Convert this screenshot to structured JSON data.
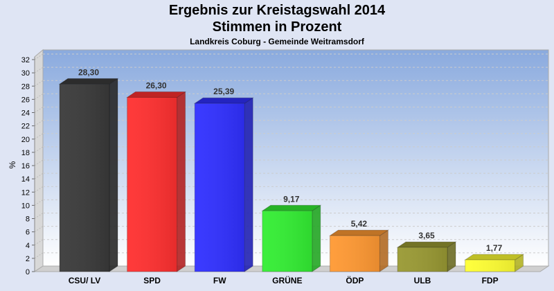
{
  "chart_data": {
    "type": "bar",
    "title": "Ergebnis zur Kreistagswahl 2014",
    "title2": "Stimmen in Prozent",
    "subtitle": "Landkreis Coburg - Gemeinde Weitramsdorf",
    "xlabel": "",
    "ylabel": "%",
    "ylim": [
      0,
      32
    ],
    "yticks": [
      0,
      2,
      4,
      6,
      8,
      10,
      12,
      14,
      16,
      18,
      20,
      22,
      24,
      26,
      28,
      30,
      32
    ],
    "categories": [
      "CSU/ LV",
      "SPD",
      "FW",
      "GRÜNE",
      "ÖDP",
      "ULB",
      "FDP"
    ],
    "values": [
      28.3,
      26.3,
      25.39,
      9.17,
      5.42,
      3.65,
      1.77
    ],
    "labels": [
      "28,30",
      "26,30",
      "25,39",
      "9,17",
      "5,42",
      "3,65",
      "1,77"
    ],
    "colors": [
      "#3a3a3a",
      "#ff3030",
      "#3030ff",
      "#33ee33",
      "#ff9933",
      "#999933",
      "#ffff33"
    ],
    "grid": true
  }
}
